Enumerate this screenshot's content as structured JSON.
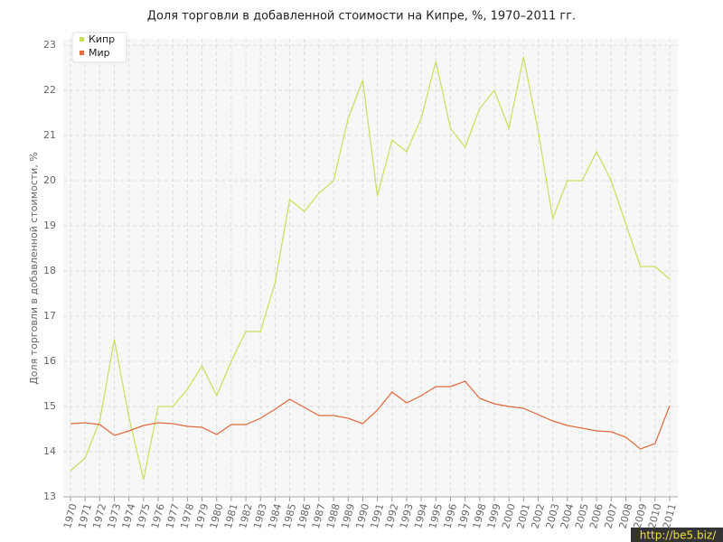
{
  "chart_data": {
    "type": "line",
    "title": "Доля торговли в добавленной стоимости на Кипре, %, 1970–2011 гг.",
    "y_label": "Доля торговли в добавленной стоимости, %",
    "categories": [
      "1970",
      "1971",
      "1972",
      "1973",
      "1974",
      "1975",
      "1976",
      "1977",
      "1978",
      "1979",
      "1980",
      "1981",
      "1982",
      "1983",
      "1984",
      "1985",
      "1986",
      "1987",
      "1988",
      "1989",
      "1990",
      "1991",
      "1992",
      "1993",
      "1994",
      "1995",
      "1996",
      "1997",
      "1998",
      "1999",
      "2000",
      "2001",
      "2002",
      "2003",
      "2004",
      "2005",
      "2006",
      "2007",
      "2008",
      "2009",
      "2010",
      "2011"
    ],
    "series": [
      {
        "name": "Кипр",
        "color": "#c5e05a",
        "values": [
          13.58,
          13.86,
          14.68,
          16.48,
          14.76,
          13.38,
          15.0,
          15.0,
          15.38,
          15.9,
          15.24,
          16.0,
          16.66,
          16.66,
          17.74,
          19.58,
          19.32,
          19.72,
          20.0,
          21.38,
          22.22,
          19.66,
          20.9,
          20.64,
          21.38,
          22.64,
          21.16,
          20.74,
          21.6,
          22.0,
          21.16,
          22.74,
          21.1,
          19.16,
          20.0,
          20.0,
          20.64,
          20.0,
          19.04,
          18.1,
          18.1,
          17.82
        ]
      },
      {
        "name": "Мир",
        "color": "#e06a3c",
        "values": [
          14.62,
          14.64,
          14.6,
          14.36,
          14.46,
          14.58,
          14.64,
          14.62,
          14.56,
          14.54,
          14.38,
          14.6,
          14.6,
          14.74,
          14.94,
          15.16,
          14.98,
          14.8,
          14.8,
          14.74,
          14.62,
          14.92,
          15.32,
          15.08,
          15.24,
          15.44,
          15.44,
          15.56,
          15.18,
          15.06,
          15.0,
          14.96,
          14.82,
          14.68,
          14.58,
          14.52,
          14.46,
          14.44,
          14.32,
          14.06,
          14.18,
          15.02
        ]
      }
    ],
    "ylim": [
      13,
      23
    ],
    "yticks": [
      13,
      14,
      15,
      16,
      17,
      18,
      19,
      20,
      21,
      22,
      23
    ],
    "grid": true,
    "legend": "top-left",
    "watermark": "http://be5.biz/"
  }
}
